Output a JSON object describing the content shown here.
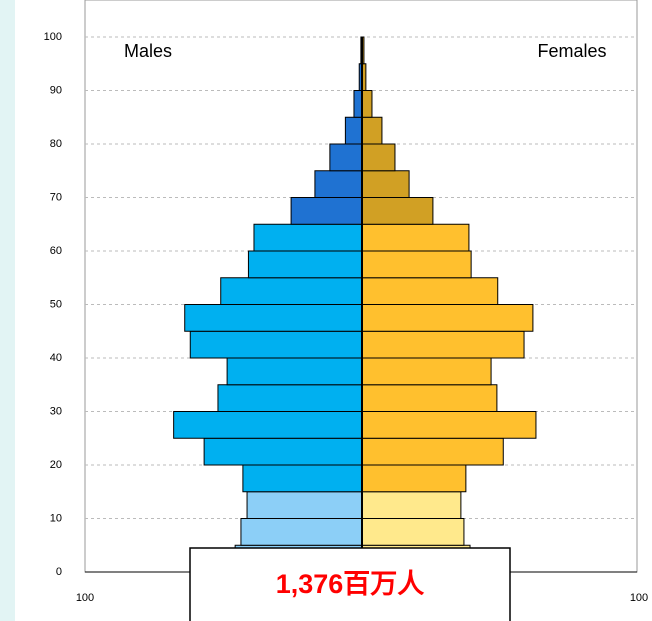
{
  "chart_data": {
    "type": "pyramid",
    "series": [
      {
        "name": "Males",
        "side": "left",
        "colors": {
          "young": "#8ccff7",
          "working": "#00b0f0",
          "old": "#1f72d2"
        },
        "values": [
          45.8,
          43.7,
          41.5,
          43,
          57,
          68,
          52,
          48.7,
          62,
          64,
          51,
          41,
          39,
          25.6,
          17,
          11.6,
          6,
          2.9,
          1,
          0.4
        ]
      },
      {
        "name": "Females",
        "side": "right",
        "colors": {
          "young": "#ffe98c",
          "working": "#ffc02e",
          "old": "#d1a024"
        },
        "values": [
          39,
          36.8,
          35.7,
          37.5,
          51,
          62.8,
          48.7,
          46.6,
          58.5,
          61.7,
          49,
          39.4,
          38.6,
          25.6,
          17,
          11.9,
          7.2,
          3.6,
          1.4,
          0.7
        ]
      }
    ],
    "age_bins": [
      0,
      5,
      10,
      15,
      20,
      25,
      30,
      35,
      40,
      45,
      50,
      55,
      60,
      65,
      70,
      75,
      80,
      85,
      90,
      95,
      100
    ],
    "color_groups": {
      "young": [
        0,
        15
      ],
      "working": [
        15,
        65
      ],
      "old": [
        65,
        100
      ]
    },
    "ylim": [
      0,
      100
    ],
    "yticks": [
      0,
      10,
      20,
      30,
      40,
      50,
      60,
      70,
      80,
      90,
      100
    ],
    "xlim": [
      -100,
      100
    ],
    "xticks": [
      {
        "value": -100,
        "label": "100"
      },
      100
    ],
    "grid": true,
    "annotation": "1,376百万人"
  }
}
